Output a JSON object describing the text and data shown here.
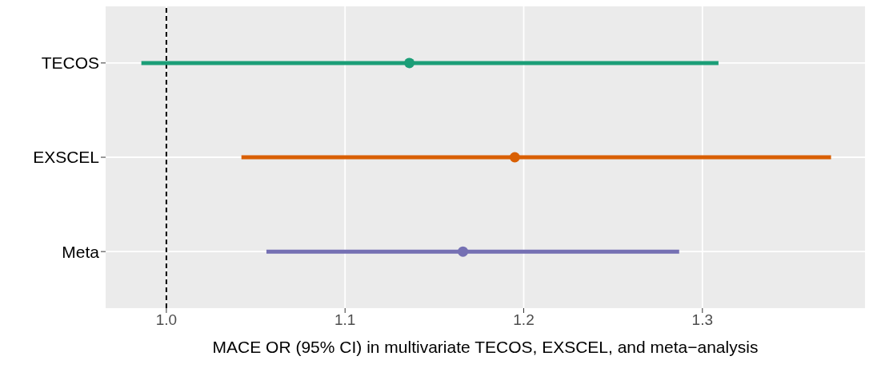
{
  "chart_data": {
    "type": "scatter",
    "orientation": "horizontal",
    "categories": [
      "TECOS",
      "EXSCEL",
      "Meta"
    ],
    "values": [
      1.136,
      1.195,
      1.166
    ],
    "errors": [
      [
        0.986,
        1.309
      ],
      [
        1.042,
        1.372
      ],
      [
        1.056,
        1.287
      ]
    ],
    "colors": [
      "#1b9e77",
      "#d95f02",
      "#7570b3"
    ],
    "xlim": [
      0.966,
      1.391
    ],
    "xticks": [
      {
        "value": 1.0,
        "label": "1.0"
      },
      {
        "value": 1.1,
        "label": "1.1"
      },
      {
        "value": 1.2,
        "label": "1.2"
      },
      {
        "value": 1.3,
        "label": "1.3"
      }
    ],
    "xlabel": "MACE OR (95% CI) in multivariate TECOS, EXSCEL, and meta−analysis",
    "ref_lines": [
      {
        "axis": "x",
        "value": 1.0,
        "color": "#000000",
        "line_style": "dashed"
      }
    ],
    "grid": true,
    "marker": "circle"
  }
}
